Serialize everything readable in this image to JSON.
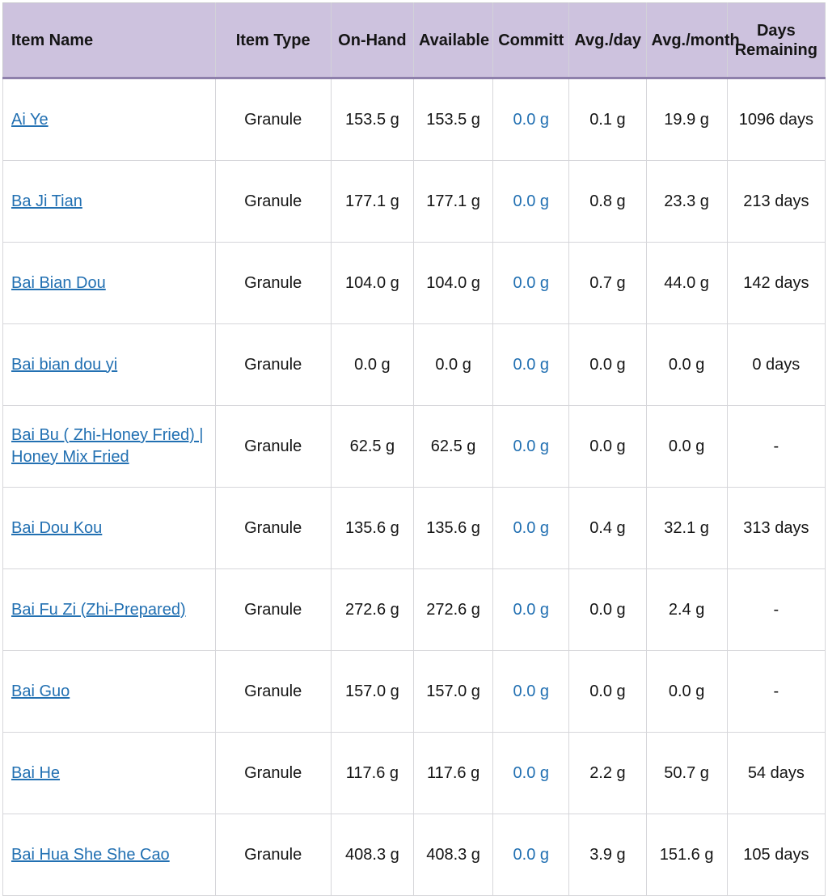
{
  "header": {
    "item_name": "Item Name",
    "item_type": "Item Type",
    "on_hand": "On-Hand",
    "available": "Available",
    "committ": "Committ",
    "avg_day": "Avg./day",
    "avg_month": "Avg./month",
    "days_remaining": "Days Remaining"
  },
  "rows": [
    {
      "name": "Ai Ye",
      "type": "Granule",
      "on_hand": "153.5 g",
      "available": "153.5 g",
      "committ": "0.0 g",
      "avg_day": "0.1 g",
      "avg_month": "19.9 g",
      "days_remaining": "1096 days"
    },
    {
      "name": "Ba Ji Tian",
      "type": "Granule",
      "on_hand": "177.1 g",
      "available": "177.1 g",
      "committ": "0.0 g",
      "avg_day": "0.8 g",
      "avg_month": "23.3 g",
      "days_remaining": "213 days"
    },
    {
      "name": "Bai Bian Dou",
      "type": "Granule",
      "on_hand": "104.0 g",
      "available": "104.0 g",
      "committ": "0.0 g",
      "avg_day": "0.7 g",
      "avg_month": "44.0 g",
      "days_remaining": "142 days"
    },
    {
      "name": "Bai bian dou yi",
      "type": "Granule",
      "on_hand": "0.0 g",
      "available": "0.0 g",
      "committ": "0.0 g",
      "avg_day": "0.0 g",
      "avg_month": "0.0 g",
      "days_remaining": "0 days"
    },
    {
      "name": "Bai Bu ( Zhi-Honey Fried) | Honey Mix Fried",
      "type": "Granule",
      "on_hand": "62.5 g",
      "available": "62.5 g",
      "committ": "0.0 g",
      "avg_day": "0.0 g",
      "avg_month": "0.0 g",
      "days_remaining": "-"
    },
    {
      "name": "Bai Dou Kou",
      "type": "Granule",
      "on_hand": "135.6 g",
      "available": "135.6 g",
      "committ": "0.0 g",
      "avg_day": "0.4 g",
      "avg_month": "32.1 g",
      "days_remaining": "313 days"
    },
    {
      "name": "Bai Fu Zi (Zhi-Prepared)",
      "type": "Granule",
      "on_hand": "272.6 g",
      "available": "272.6 g",
      "committ": "0.0 g",
      "avg_day": "0.0 g",
      "avg_month": "2.4 g",
      "days_remaining": "-"
    },
    {
      "name": "Bai Guo",
      "type": "Granule",
      "on_hand": "157.0 g",
      "available": "157.0 g",
      "committ": "0.0 g",
      "avg_day": "0.0 g",
      "avg_month": "0.0 g",
      "days_remaining": "-"
    },
    {
      "name": "Bai He",
      "type": "Granule",
      "on_hand": "117.6 g",
      "available": "117.6 g",
      "committ": "0.0 g",
      "avg_day": "2.2 g",
      "avg_month": "50.7 g",
      "days_remaining": "54 days"
    },
    {
      "name": "Bai Hua She She Cao",
      "type": "Granule",
      "on_hand": "408.3 g",
      "available": "408.3 g",
      "committ": "0.0 g",
      "avg_day": "3.9 g",
      "avg_month": "151.6 g",
      "days_remaining": "105 days"
    }
  ],
  "colors": {
    "header_bg": "#cdc2de",
    "header_accent_border": "#8e80ab",
    "grid_line": "#d6d6da",
    "link_blue": "#2270b2",
    "committ_blue": "#2270b2",
    "text": "#151515"
  }
}
